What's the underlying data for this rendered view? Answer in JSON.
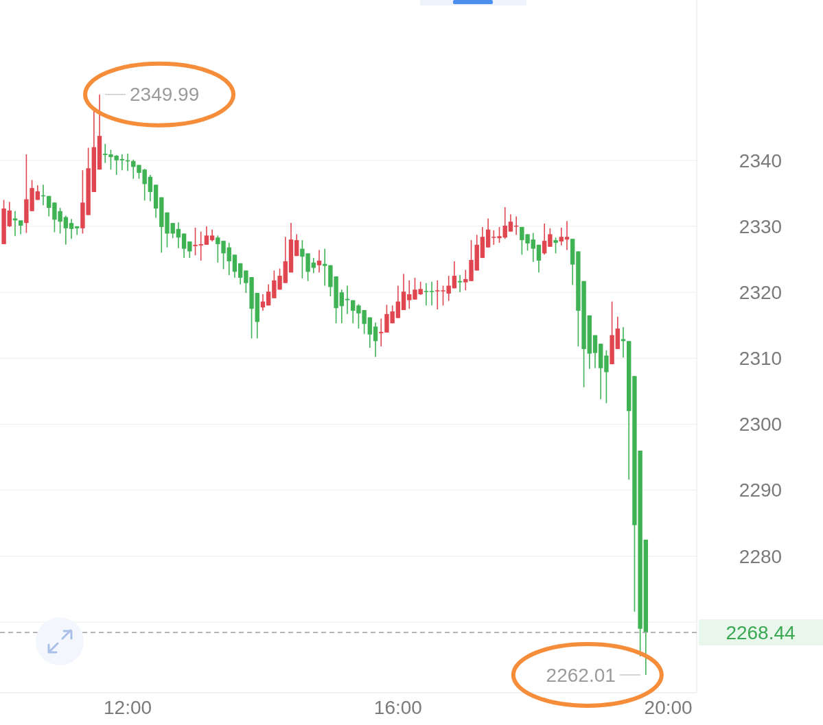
{
  "chart_data": {
    "type": "candlestick",
    "x": [
      10.1667,
      10.25,
      10.3333,
      10.4167,
      10.5,
      10.5833,
      10.6667,
      10.75,
      10.8333,
      10.9167,
      11,
      11.0833,
      11.1667,
      11.25,
      11.3333,
      11.4167,
      11.5,
      11.5833,
      11.6667,
      11.75,
      11.8333,
      11.9167,
      12,
      12.0833,
      12.1667,
      12.25,
      12.3333,
      12.4167,
      12.5,
      12.5833,
      12.6667,
      12.75,
      12.8333,
      12.9167,
      13,
      13.0833,
      13.1667,
      13.25,
      13.3333,
      13.4167,
      13.5,
      13.5833,
      13.6667,
      13.75,
      13.8333,
      13.9167,
      14,
      14.0833,
      14.1667,
      14.25,
      14.3333,
      14.4167,
      14.5,
      14.5833,
      14.6667,
      14.75,
      14.8333,
      14.9167,
      15,
      15.0833,
      15.1667,
      15.25,
      15.3333,
      15.4167,
      15.5,
      15.5833,
      15.6667,
      15.75,
      15.8333,
      15.9167,
      16,
      16.0833,
      16.1667,
      16.25,
      16.3333,
      16.4167,
      16.5,
      16.5833,
      16.6667,
      16.75,
      16.8333,
      16.9167,
      17,
      17.0833,
      17.1667,
      17.25,
      17.3333,
      17.4167,
      17.5,
      17.5833,
      17.6667,
      17.75,
      17.8333,
      17.9167,
      18,
      18.0833,
      18.1667,
      18.25,
      18.3333,
      18.4167,
      18.5,
      18.5833,
      18.6667,
      18.75,
      18.8333,
      18.9167,
      19,
      19.0833,
      19.1667,
      19.25,
      19.3333,
      19.4167,
      19.5,
      19.5833,
      19.6667
    ],
    "series": [
      {
        "color": "#e0464f",
        "ohlc": [
          [
            2327.3,
            2334.0,
            2327.3,
            2332.7
          ],
          [
            2330.0,
            2333.7,
            2329.9,
            2332.4
          ],
          null,
          null,
          [
            2330.5,
            2340.9,
            2329.0,
            2334.1
          ],
          [
            2332.3,
            2337.0,
            2332.3,
            2335.8
          ],
          [
            2334.0,
            2336.2,
            2334.0,
            2335.3
          ],
          null,
          null,
          null,
          null,
          null,
          null,
          null,
          [
            2329.7,
            2338.5,
            2328.9,
            2333.6
          ],
          [
            2331.7,
            2341.9,
            2331.7,
            2338.8
          ],
          [
            2335.2,
            2347.5,
            2335.2,
            2342.0
          ],
          [
            2338.6,
            2349.99,
            2338.6,
            2343.7
          ],
          null,
          null,
          null,
          null,
          null,
          null,
          null,
          null,
          null,
          null,
          null,
          null,
          null,
          null,
          null,
          null,
          [
            2327.0,
            2329.8,
            2325.6,
            2327.2
          ],
          [
            2327.1,
            2329.2,
            2324.8,
            2327.3
          ],
          [
            2327.2,
            2330.0,
            2327.2,
            2328.6
          ],
          [
            2327.9,
            2329.5,
            2327.7,
            2328.6
          ],
          null,
          null,
          null,
          null,
          null,
          null,
          null,
          null,
          [
            2317.7,
            2319.7,
            2317.2,
            2318.6
          ],
          [
            2318.0,
            2321.2,
            2318.0,
            2320.1
          ],
          [
            2319.1,
            2323.3,
            2319.1,
            2321.8
          ],
          [
            2320.4,
            2323.6,
            2320.4,
            2322.5
          ],
          [
            2321.4,
            2328.4,
            2321.4,
            2324.7
          ],
          [
            2323.0,
            2330.5,
            2323.0,
            2328.0
          ],
          [
            2325.5,
            2328.8,
            2325.5,
            2327.9
          ],
          null,
          null,
          null,
          [
            2324.1,
            2326.4,
            2323.0,
            2324.8
          ],
          null,
          null,
          null,
          null,
          null,
          null,
          null,
          null,
          null,
          null,
          [
            2313.8,
            2316.0,
            2311.8,
            2314.0
          ],
          [
            2313.9,
            2318.1,
            2313.9,
            2316.7
          ],
          [
            2315.3,
            2318.0,
            2315.3,
            2317.1
          ],
          [
            2316.1,
            2321.0,
            2316.1,
            2318.6
          ],
          [
            2317.3,
            2322.8,
            2317.3,
            2320.1
          ],
          [
            2318.8,
            2321.8,
            2317.5,
            2319.7
          ],
          [
            2318.9,
            2322.2,
            2318.9,
            2320.4
          ],
          [
            2319.7,
            2321.6,
            2319.6,
            2320.5
          ],
          null,
          null,
          [
            2320.2,
            2321.8,
            2317.4,
            2320.3
          ],
          [
            2320.2,
            2321.0,
            2318.0,
            2320.3
          ],
          [
            2319.8,
            2322.5,
            2318.7,
            2321.0
          ],
          [
            2320.6,
            2324.7,
            2320.6,
            2322.5
          ],
          null,
          [
            2321.5,
            2323.4,
            2320.3,
            2322.0
          ],
          [
            2321.7,
            2327.9,
            2321.7,
            2324.9
          ],
          [
            2323.3,
            2328.7,
            2323.3,
            2327.2
          ],
          [
            2325.2,
            2329.9,
            2325.2,
            2328.4
          ],
          [
            2326.8,
            2331.2,
            2326.8,
            2329.5
          ],
          [
            2328.3,
            2329.4,
            2327.2,
            2328.4
          ],
          [
            2328.2,
            2329.9,
            2327.5,
            2328.5
          ],
          [
            2328.3,
            2332.9,
            2328.1,
            2330.1
          ],
          [
            2329.2,
            2331.8,
            2329.2,
            2330.7
          ],
          [
            2330.0,
            2331.5,
            2328.7,
            2330.1
          ],
          null,
          null,
          null,
          null,
          [
            2325.9,
            2330.4,
            2325.7,
            2327.8
          ],
          [
            2326.9,
            2329.7,
            2326.9,
            2328.8
          ],
          null,
          [
            2327.7,
            2329.8,
            2327.1,
            2328.4
          ],
          [
            2328.0,
            2330.8,
            2326.4,
            2328.4
          ],
          null,
          null,
          null,
          null,
          null,
          null,
          null,
          [
            2309.1,
            2318.6,
            2309.1,
            2313.5
          ],
          [
            2311.4,
            2316.3,
            2311.4,
            2314.5
          ],
          null,
          null,
          null,
          null,
          null
        ]
      },
      {
        "color": "#3fb254",
        "ohlc": [
          null,
          null,
          [
            2331.2,
            2332.3,
            2328.5,
            2330.9
          ],
          [
            2330.9,
            2330.9,
            2328.8,
            2330.1
          ],
          null,
          null,
          null,
          [
            2334.7,
            2336.3,
            2333.2,
            2334.6
          ],
          [
            2334.6,
            2334.6,
            2331.5,
            2332.8
          ],
          [
            2333.6,
            2333.6,
            2329.1,
            2331.0
          ],
          [
            2332.3,
            2332.8,
            2328.9,
            2330.7
          ],
          [
            2331.4,
            2331.6,
            2327.2,
            2329.7
          ],
          [
            2330.5,
            2331.1,
            2328.1,
            2329.6
          ],
          [
            2330.0,
            2330.0,
            2328.7,
            2329.7
          ],
          null,
          null,
          null,
          null,
          [
            2341.0,
            2342.5,
            2339.6,
            2340.8
          ],
          [
            2340.9,
            2341.6,
            2338.6,
            2340.5
          ],
          [
            2340.7,
            2340.8,
            2337.8,
            2340.0
          ],
          [
            2340.2,
            2340.9,
            2338.5,
            2340.0
          ],
          [
            2340.0,
            2341.0,
            2338.4,
            2339.9
          ],
          [
            2339.9,
            2340.1,
            2337.2,
            2339.0
          ],
          [
            2339.3,
            2339.3,
            2337.2,
            2338.1
          ],
          [
            2338.6,
            2338.7,
            2333.9,
            2336.4
          ],
          [
            2337.5,
            2337.8,
            2333.8,
            2335.2
          ],
          [
            2336.3,
            2336.3,
            2331.3,
            2332.7
          ],
          [
            2334.4,
            2334.4,
            2326.0,
            2329.9
          ],
          [
            2332.1,
            2332.1,
            2326.8,
            2328.9
          ],
          [
            2330.5,
            2330.5,
            2328.2,
            2328.9
          ],
          [
            2329.6,
            2330.6,
            2326.7,
            2328.3
          ],
          [
            2328.9,
            2328.9,
            2325.2,
            2326.6
          ],
          [
            2327.7,
            2327.7,
            2325.2,
            2326.2
          ],
          null,
          null,
          null,
          null,
          [
            2328.3,
            2328.6,
            2324.5,
            2327.3
          ],
          [
            2327.8,
            2327.8,
            2323.5,
            2325.9
          ],
          [
            2326.8,
            2327.5,
            2322.6,
            2324.7
          ],
          [
            2325.7,
            2325.7,
            2322.2,
            2323.1
          ],
          [
            2324.4,
            2324.4,
            2321.2,
            2322.2
          ],
          [
            2323.3,
            2323.3,
            2319.9,
            2321.4
          ],
          [
            2322.3,
            2322.3,
            2313.0,
            2317.5
          ],
          [
            2319.9,
            2319.9,
            2313.0,
            2315.5
          ],
          null,
          null,
          null,
          null,
          null,
          null,
          null,
          [
            2326.6,
            2327.9,
            2322.1,
            2325.4
          ],
          [
            2325.9,
            2325.9,
            2321.7,
            2323.1
          ],
          [
            2324.5,
            2325.2,
            2322.9,
            2323.7
          ],
          null,
          [
            2324.3,
            2326.6,
            2321.0,
            2324.0
          ],
          [
            2324.1,
            2324.1,
            2319.4,
            2320.8
          ],
          [
            2322.4,
            2322.4,
            2315.3,
            2317.6
          ],
          [
            2320.0,
            2320.4,
            2315.3,
            2317.9
          ],
          [
            2319.0,
            2321.0,
            2316.7,
            2318.8
          ],
          [
            2318.8,
            2318.8,
            2315.3,
            2317.2
          ],
          [
            2318.0,
            2318.2,
            2314.5,
            2316.8
          ],
          [
            2317.3,
            2317.3,
            2313.7,
            2315.2
          ],
          [
            2316.2,
            2316.2,
            2311.6,
            2313.6
          ],
          [
            2314.8,
            2315.4,
            2310.2,
            2312.6
          ],
          null,
          null,
          null,
          null,
          null,
          null,
          null,
          null,
          [
            2320.2,
            2321.4,
            2318.0,
            2320.1
          ],
          [
            2320.2,
            2321.6,
            2318.0,
            2320.1
          ],
          null,
          null,
          null,
          null,
          [
            2321.7,
            2322.6,
            2320.0,
            2321.5
          ],
          null,
          null,
          null,
          null,
          null,
          null,
          null,
          null,
          null,
          null,
          [
            2329.9,
            2329.9,
            2325.7,
            2327.9
          ],
          [
            2328.8,
            2328.8,
            2326.3,
            2327.4
          ],
          [
            2328.0,
            2329.0,
            2324.6,
            2326.6
          ],
          [
            2327.2,
            2327.2,
            2323.0,
            2324.8
          ],
          null,
          null,
          [
            2327.9,
            2328.3,
            2325.9,
            2327.5
          ],
          null,
          null,
          [
            2328.1,
            2328.1,
            2321.1,
            2324.2
          ],
          [
            2326.2,
            2326.2,
            2311.8,
            2317.2
          ],
          [
            2321.7,
            2321.7,
            2305.6,
            2311.4
          ],
          [
            2316.5,
            2316.5,
            2308.4,
            2310.7
          ],
          [
            2313.5,
            2313.5,
            2308.5,
            2310.8
          ],
          [
            2312.2,
            2312.2,
            2303.8,
            2308.5
          ],
          [
            2310.4,
            2311.2,
            2303.2,
            2307.9
          ],
          null,
          null,
          [
            2312.9,
            2314.7,
            2310.1,
            2312.6
          ],
          [
            2312.6,
            2312.6,
            2291.6,
            2302.0
          ],
          [
            2307.3,
            2307.3,
            2271.6,
            2284.7
          ],
          [
            2296.0,
            2296.0,
            2264.8,
            2269.0
          ],
          [
            2282.5,
            2282.5,
            2262.01,
            2268.44
          ]
        ]
      }
    ],
    "xlim": [
      10.11,
      20.42
    ],
    "xticks": [
      {
        "value": 12,
        "label": "12:00"
      },
      {
        "value": 16,
        "label": "16:00"
      },
      {
        "value": 20,
        "label": "20:00"
      }
    ],
    "ylim": [
      2259.3,
      2364.3
    ],
    "yticks": [
      {
        "value": 2270,
        "label": null
      },
      2280,
      2290,
      2300,
      2310,
      2320,
      2330,
      2340
    ],
    "grid": "y",
    "ref_lines": [
      {
        "axis": "y",
        "value": 2268.44,
        "label": "2268.44",
        "color": "#aaaaaa",
        "line_style": "dashed"
      }
    ],
    "annotations": [
      {
        "text": "2349.99",
        "x": 11.5833,
        "y": 2349.99
      },
      {
        "text": "2262.01",
        "x": 19.6667,
        "y": 2262.01
      }
    ]
  }
}
